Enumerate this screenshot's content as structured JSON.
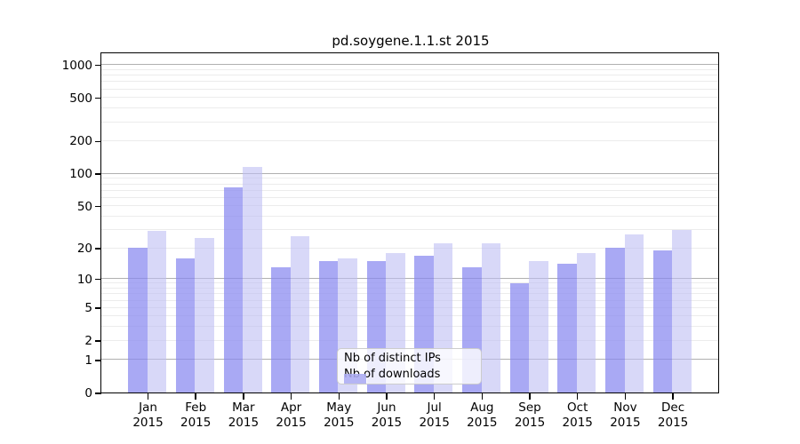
{
  "title": "pd.soygene.1.1.st 2015",
  "chart_data": {
    "type": "bar",
    "title": "pd.soygene.1.1.st 2015",
    "categories": [
      "Jan",
      "Feb",
      "Mar",
      "Apr",
      "May",
      "Jun",
      "Jul",
      "Aug",
      "Sep",
      "Oct",
      "Nov",
      "Dec"
    ],
    "year_label": "2015",
    "series": [
      {
        "name": "Nb of distinct IPs",
        "color": "#8888f0",
        "values": [
          20,
          16,
          75,
          13,
          15,
          15,
          17,
          13,
          9,
          14,
          20,
          19
        ]
      },
      {
        "name": "Nb of downloads",
        "color": "#bebef3",
        "values": [
          29,
          25,
          114,
          26,
          16,
          18,
          22,
          22,
          15,
          18,
          27,
          30
        ]
      }
    ],
    "xlabel": "",
    "ylabel": "",
    "y_scale": "log1p",
    "ylim": [
      0,
      1270
    ],
    "y_ticks": [
      0,
      1,
      2,
      5,
      10,
      20,
      50,
      100,
      200,
      500,
      1000
    ],
    "major_grid_values": [
      1,
      10,
      100,
      1000
    ],
    "minor_grid_values": [
      2,
      3,
      4,
      5,
      6,
      7,
      8,
      9,
      20,
      30,
      40,
      50,
      60,
      70,
      80,
      90,
      200,
      300,
      400,
      500,
      600,
      700,
      800,
      900
    ],
    "grid": "on",
    "legend_position": "inside-lower-center"
  },
  "colors": {
    "ips_bar": "#8888f0",
    "downloads_bar": "#bebef3",
    "major_grid": "#b0b0b0",
    "minor_grid": "#ececec",
    "axis": "#000000",
    "legend_border": "#cccccc"
  }
}
